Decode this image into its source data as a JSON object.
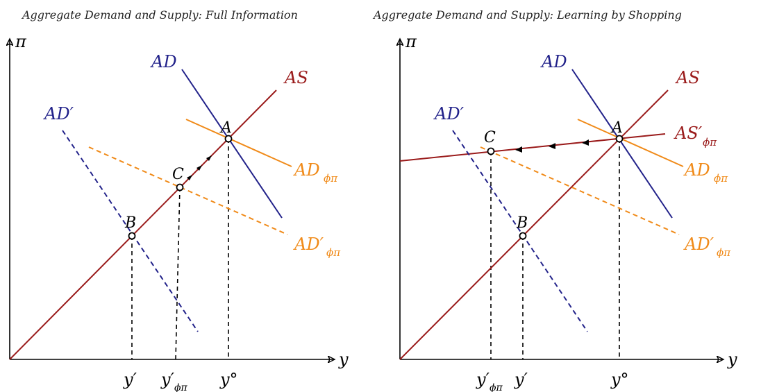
{
  "left": {
    "title": "Aggregate Demand and Supply: Full Information",
    "y_axis_label": "π",
    "x_axis_label": "y",
    "curves": {
      "AS": "AS",
      "AD": "AD",
      "AD_prime": "AD′",
      "AD_phi": "AD",
      "AD_phi_sub": "ϕπ",
      "AD_phi_prime": "AD′",
      "AD_phi_prime_sub": "ϕπ"
    },
    "points": {
      "A": "A",
      "B": "B",
      "C": "C"
    },
    "ticks": {
      "y_prime": "y′",
      "y_prime_phi": "y′",
      "y_prime_phi_sub": "ϕπ",
      "y_circ": "y°"
    }
  },
  "right": {
    "title": "Aggregate Demand and Supply: Learning by Shopping",
    "y_axis_label": "π",
    "x_axis_label": "y",
    "curves": {
      "AS": "AS",
      "AS_prime": "AS′",
      "AS_prime_sub": "ϕπ",
      "AD": "AD",
      "AD_prime": "AD′",
      "AD_phi": "AD",
      "AD_phi_sub": "ϕπ",
      "AD_phi_prime": "AD′",
      "AD_phi_prime_sub": "ϕπ"
    },
    "points": {
      "A": "A",
      "B": "B",
      "C": "C"
    },
    "ticks": {
      "y_prime_phi": "y′",
      "y_prime_phi_sub": "ϕπ",
      "y_prime": "y′",
      "y_circ": "y°"
    }
  },
  "colors": {
    "AS": "#9a1b1b",
    "AD": "#22228a",
    "AD_phi": "#f08a18",
    "axis": "#000000"
  }
}
